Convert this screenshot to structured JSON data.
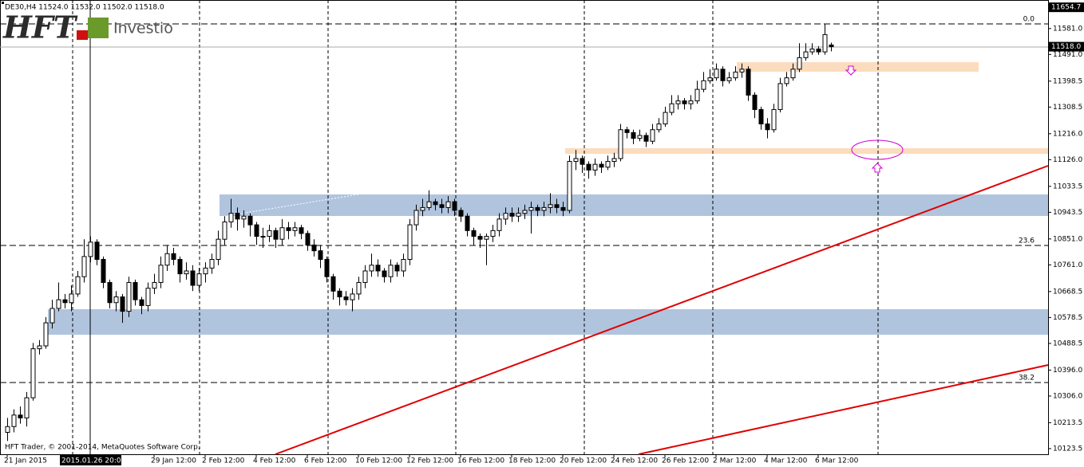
{
  "chart_data": {
    "type": "candlestick",
    "header": "DE30,H4  11524.0 11532.0 11502.0 11518.0",
    "logo_text": "HFT",
    "logo_subtext": "Investio",
    "footer": "HFT Trader, © 2001-2014, MetaQuotes Software Corp.",
    "crosshair_time": "2015.01.26 20:00",
    "bull_color": "#ffffff",
    "bear_color": "#000000",
    "categories": [
      "21 Jan 2015",
      null,
      null,
      null,
      null,
      null,
      null,
      null,
      null,
      null,
      null,
      null,
      null,
      null,
      null,
      null,
      null,
      null,
      null,
      null,
      null,
      null,
      null,
      "29 Jan 12:00",
      null,
      null,
      null,
      null,
      null,
      null,
      null,
      "2 Feb 12:00",
      null,
      null,
      null,
      null,
      null,
      null,
      null,
      "4 Feb 12:00",
      null,
      null,
      null,
      null,
      null,
      null,
      null,
      "6 Feb 12:00",
      null,
      null,
      null,
      null,
      null,
      null,
      null,
      "10 Feb 12:00",
      null,
      null,
      null,
      null,
      null,
      null,
      null,
      "12 Feb 12:00",
      null,
      null,
      null,
      null,
      null,
      null,
      null,
      "16 Feb 12:00",
      null,
      null,
      null,
      null,
      null,
      null,
      null,
      "18 Feb 12:00",
      null,
      null,
      null,
      null,
      null,
      null,
      null,
      "20 Feb 12:00",
      null,
      null,
      null,
      null,
      null,
      null,
      null,
      "24 Feb 12:00",
      null,
      null,
      null,
      null,
      null,
      null,
      null,
      "26 Feb 12:00",
      null,
      null,
      null,
      null,
      null,
      null,
      null,
      "2 Mar 12:00",
      null,
      null,
      null,
      null,
      null,
      null,
      null,
      "4 Mar 12:00",
      null,
      null,
      null,
      null,
      null,
      null,
      null,
      "6 Mar 12:00",
      null,
      null
    ],
    "open": [
      10180,
      10200,
      10240,
      10230,
      10300,
      10470,
      10480,
      10560,
      10610,
      10640,
      10630,
      10660,
      10720,
      10790,
      10840,
      10780,
      10700,
      10630,
      10650,
      10600,
      10700,
      10640,
      10620,
      10680,
      10700,
      10760,
      10800,
      10780,
      10730,
      10740,
      10690,
      10730,
      10750,
      10780,
      10850,
      10910,
      10940,
      10920,
      10930,
      10900,
      10860,
      10860,
      10880,
      10850,
      10890,
      10880,
      10890,
      10870,
      10830,
      10810,
      10780,
      10720,
      10670,
      10650,
      10640,
      10660,
      10700,
      10740,
      10760,
      10740,
      10720,
      10760,
      10740,
      10780,
      10900,
      10950,
      10960,
      10980,
      10970,
      10960,
      10980,
      10950,
      10930,
      10880,
      10860,
      10850,
      10860,
      10880,
      10920,
      10940,
      10930,
      10940,
      10950,
      10960,
      10950,
      10960,
      10970,
      10960,
      10950,
      11120,
      11130,
      11110,
      11090,
      11110,
      11100,
      11120,
      11130,
      11230,
      11220,
      11200,
      11210,
      11190,
      11230,
      11250,
      11290,
      11320,
      11330,
      11320,
      11330,
      11370,
      11400,
      11410,
      11440,
      11400,
      11410,
      11430,
      11440,
      11350,
      11300,
      11250,
      11230,
      11300,
      11390,
      11410,
      11440,
      11480,
      11500,
      11510,
      11500,
      11524
    ],
    "high": [
      10230,
      10260,
      10270,
      10320,
      10490,
      10500,
      10580,
      10640,
      10700,
      10660,
      10690,
      10740,
      10850,
      10860,
      10850,
      10790,
      10710,
      10670,
      10660,
      10720,
      10710,
      10650,
      10700,
      10730,
      10790,
      10830,
      10820,
      10790,
      10770,
      10760,
      10750,
      10770,
      10800,
      10880,
      10930,
      10990,
      10960,
      10950,
      10940,
      10910,
      10890,
      10900,
      10890,
      10920,
      10910,
      10910,
      10900,
      10880,
      10850,
      10830,
      10790,
      10730,
      10680,
      10670,
      10680,
      10720,
      10760,
      10800,
      10780,
      10750,
      10780,
      10770,
      10800,
      10920,
      10970,
      10990,
      11020,
      10990,
      10990,
      11000,
      10990,
      10960,
      10940,
      10890,
      10870,
      10870,
      10900,
      10940,
      10960,
      10960,
      10960,
      10970,
      10980,
      10970,
      10980,
      11010,
      10990,
      10980,
      11140,
      11160,
      11140,
      11120,
      11130,
      11120,
      11140,
      11150,
      11250,
      11240,
      11230,
      11230,
      11220,
      11250,
      11270,
      11310,
      11350,
      11350,
      11340,
      11350,
      11400,
      11430,
      11440,
      11460,
      11450,
      11430,
      11450,
      11460,
      11450,
      11360,
      11310,
      11270,
      11320,
      11410,
      11430,
      11460,
      11530,
      11530,
      11530,
      11520,
      11597,
      11532
    ],
    "low": [
      10150,
      10180,
      10210,
      10200,
      10290,
      10450,
      10470,
      10540,
      10600,
      10610,
      10600,
      10650,
      10700,
      10770,
      10760,
      10680,
      10610,
      10600,
      10560,
      10580,
      10620,
      10590,
      10600,
      10660,
      10680,
      10740,
      10760,
      10700,
      10710,
      10670,
      10670,
      10700,
      10730,
      10760,
      10830,
      10890,
      10880,
      10890,
      10860,
      10830,
      10820,
      10840,
      10820,
      10830,
      10850,
      10860,
      10850,
      10810,
      10790,
      10750,
      10700,
      10640,
      10620,
      10620,
      10600,
      10640,
      10680,
      10720,
      10720,
      10700,
      10700,
      10720,
      10720,
      10760,
      10880,
      10930,
      10950,
      10950,
      10940,
      10940,
      10930,
      10910,
      10860,
      10830,
      10820,
      10760,
      10840,
      10860,
      10900,
      10910,
      10910,
      10920,
      10870,
      10930,
      10930,
      10940,
      10940,
      10930,
      10940,
      11090,
      11080,
      11060,
      11070,
      11080,
      11090,
      11100,
      11120,
      11200,
      11180,
      11190,
      11170,
      11180,
      11220,
      11240,
      11280,
      11300,
      11300,
      11300,
      11320,
      11360,
      11390,
      11400,
      11380,
      11390,
      11400,
      11410,
      11330,
      11270,
      11230,
      11200,
      11220,
      11290,
      11380,
      11400,
      11430,
      11470,
      11490,
      11490,
      11490,
      11502
    ],
    "close": [
      10200,
      10240,
      10230,
      10300,
      10470,
      10480,
      10560,
      10610,
      10640,
      10630,
      10660,
      10720,
      10790,
      10840,
      10780,
      10700,
      10630,
      10650,
      10600,
      10700,
      10640,
      10620,
      10680,
      10700,
      10760,
      10800,
      10780,
      10730,
      10740,
      10690,
      10730,
      10750,
      10780,
      10850,
      10910,
      10940,
      10920,
      10930,
      10900,
      10860,
      10860,
      10880,
      10850,
      10890,
      10880,
      10890,
      10870,
      10830,
      10810,
      10780,
      10720,
      10670,
      10650,
      10640,
      10660,
      10700,
      10740,
      10760,
      10740,
      10720,
      10760,
      10740,
      10780,
      10900,
      10950,
      10960,
      10980,
      10970,
      10960,
      10980,
      10950,
      10930,
      10880,
      10860,
      10850,
      10860,
      10880,
      10920,
      10940,
      10930,
      10940,
      10950,
      10960,
      10950,
      10960,
      10970,
      10960,
      10950,
      11120,
      11130,
      11110,
      11090,
      11110,
      11100,
      11120,
      11130,
      11230,
      11220,
      11200,
      11210,
      11190,
      11230,
      11250,
      11290,
      11320,
      11330,
      11320,
      11330,
      11370,
      11400,
      11410,
      11440,
      11400,
      11410,
      11430,
      11440,
      11350,
      11300,
      11250,
      11230,
      11300,
      11390,
      11410,
      11440,
      11480,
      11500,
      11510,
      11500,
      11560,
      11518
    ],
    "ylim": [
      10104,
      11680
    ],
    "yticks": [
      {
        "value": 11581,
        "label": "11581.0"
      },
      {
        "value": 11491,
        "label": "11491.0"
      },
      {
        "value": 11398.5,
        "label": "11398.5"
      },
      {
        "value": 11308.5,
        "label": "11308.5"
      },
      {
        "value": 11216,
        "label": "11216.0"
      },
      {
        "value": 11126,
        "label": "11126.0"
      },
      {
        "value": 11033.5,
        "label": "11033.5"
      },
      {
        "value": 10943.5,
        "label": "10943.5"
      },
      {
        "value": 10851,
        "label": "10851.0"
      },
      {
        "value": 10761,
        "label": "10761.0"
      },
      {
        "value": 10668.5,
        "label": "10668.5"
      },
      {
        "value": 10578.5,
        "label": "10578.5"
      },
      {
        "value": 10488.5,
        "label": "10488.5"
      },
      {
        "value": 10396,
        "label": "10396.0"
      },
      {
        "value": 10306,
        "label": "10306.0"
      },
      {
        "value": 10213.5,
        "label": "10213.5"
      },
      {
        "value": 10123.5,
        "label": "10123.5"
      }
    ],
    "price_labels": [
      {
        "value": 11654.7,
        "label": "11654.7"
      },
      {
        "value": 11518,
        "label": "11518.0"
      }
    ],
    "fib_levels": [
      {
        "value": 0,
        "label": "0.0"
      },
      23.6,
      38.2
    ]
  }
}
